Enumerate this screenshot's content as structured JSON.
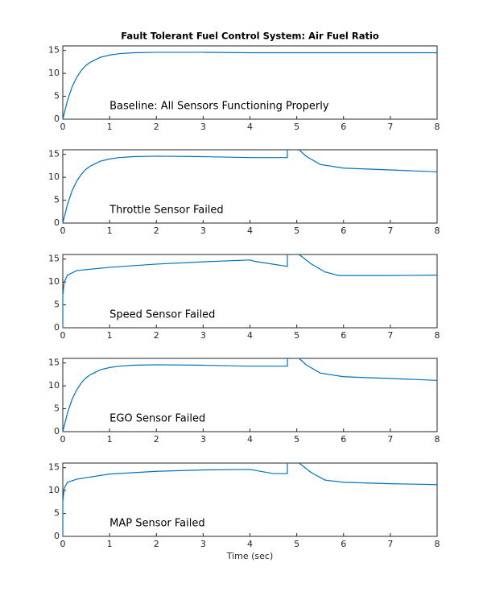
{
  "chart_data": [
    {
      "type": "line",
      "title": "Fault Tolerant Fuel Control System: Air Fuel Ratio",
      "annotation": "Baseline: All Sensors Functioning Properly",
      "color": "#0072bd",
      "x": [
        0,
        0.1,
        0.2,
        0.3,
        0.4,
        0.5,
        0.6,
        0.8,
        1,
        1.2,
        1.5,
        2,
        3,
        4,
        5,
        6,
        7,
        8
      ],
      "values": [
        0,
        4.1,
        7.1,
        9.2,
        10.7,
        11.8,
        12.5,
        13.5,
        14,
        14.3,
        14.5,
        14.6,
        14.6,
        14.5,
        14.5,
        14.5,
        14.5,
        14.5
      ],
      "xlim": [
        0,
        8
      ],
      "ylim": [
        0,
        16
      ],
      "xticks": [
        0,
        1,
        2,
        3,
        4,
        5,
        6,
        7,
        8
      ],
      "yticks": [
        0,
        5,
        10,
        15
      ]
    },
    {
      "type": "line",
      "annotation": "Throttle Sensor Failed",
      "color": "#0072bd",
      "x": [
        0,
        0.1,
        0.2,
        0.3,
        0.4,
        0.5,
        0.6,
        0.8,
        1,
        1.2,
        1.5,
        2,
        3,
        4,
        4.8,
        4.8,
        4.9,
        5.05,
        5.2,
        5.5,
        6,
        7,
        8
      ],
      "values": [
        0,
        4.1,
        7.1,
        9.2,
        10.7,
        11.8,
        12.5,
        13.5,
        14,
        14.3,
        14.5,
        14.6,
        14.5,
        14.3,
        14.3,
        16,
        null,
        16,
        14.6,
        12.8,
        12,
        11.6,
        11.2
      ],
      "xlim": [
        0,
        8
      ],
      "ylim": [
        0,
        16
      ],
      "xticks": [
        0,
        1,
        2,
        3,
        4,
        5,
        6,
        7,
        8
      ],
      "yticks": [
        0,
        5,
        10,
        15
      ]
    },
    {
      "type": "line",
      "annotation": "Speed Sensor Failed",
      "color": "#0072bd",
      "x": [
        0,
        0,
        0.03,
        0.1,
        0.3,
        1,
        2,
        3,
        4,
        4.1,
        4.8,
        4.8,
        4.9,
        5.05,
        5.3,
        5.6,
        5.9,
        7,
        8
      ],
      "values": [
        0,
        7,
        10,
        11.5,
        12.5,
        13.2,
        13.9,
        14.4,
        14.8,
        14.5,
        13.4,
        16,
        null,
        16,
        14,
        12.2,
        11.4,
        11.4,
        11.5
      ],
      "xlim": [
        0,
        8
      ],
      "ylim": [
        0,
        16
      ],
      "xticks": [
        0,
        1,
        2,
        3,
        4,
        5,
        6,
        7,
        8
      ],
      "yticks": [
        0,
        5,
        10,
        15
      ]
    },
    {
      "type": "line",
      "annotation": "EGO Sensor Failed",
      "color": "#0072bd",
      "x": [
        0,
        0.1,
        0.2,
        0.3,
        0.4,
        0.5,
        0.6,
        0.8,
        1,
        1.2,
        1.5,
        2,
        3,
        4,
        4.8,
        4.8,
        4.9,
        5.05,
        5.2,
        5.5,
        6,
        7,
        8
      ],
      "values": [
        0,
        4.1,
        7.1,
        9.2,
        10.7,
        11.8,
        12.5,
        13.5,
        14,
        14.3,
        14.5,
        14.6,
        14.5,
        14.3,
        14.3,
        16,
        null,
        16,
        14.6,
        12.8,
        12,
        11.6,
        11.2
      ],
      "xlim": [
        0,
        8
      ],
      "ylim": [
        0,
        16
      ],
      "xticks": [
        0,
        1,
        2,
        3,
        4,
        5,
        6,
        7,
        8
      ],
      "yticks": [
        0,
        5,
        10,
        15
      ]
    },
    {
      "type": "line",
      "annotation": "MAP Sensor Failed",
      "xlabel": "Time (sec)",
      "color": "#0072bd",
      "x": [
        0,
        0,
        0.03,
        0.1,
        0.3,
        1,
        2,
        3,
        4,
        4.5,
        4.8,
        4.8,
        4.9,
        5.05,
        5.3,
        5.6,
        6,
        7,
        8
      ],
      "values": [
        0,
        7.5,
        10.5,
        11.8,
        12.5,
        13.6,
        14.2,
        14.5,
        14.6,
        13.7,
        13.7,
        16,
        null,
        16,
        14,
        12.3,
        11.8,
        11.5,
        11.3
      ],
      "xlim": [
        0,
        8
      ],
      "ylim": [
        0,
        16
      ],
      "xticks": [
        0,
        1,
        2,
        3,
        4,
        5,
        6,
        7,
        8
      ],
      "yticks": [
        0,
        5,
        10,
        15
      ]
    }
  ]
}
